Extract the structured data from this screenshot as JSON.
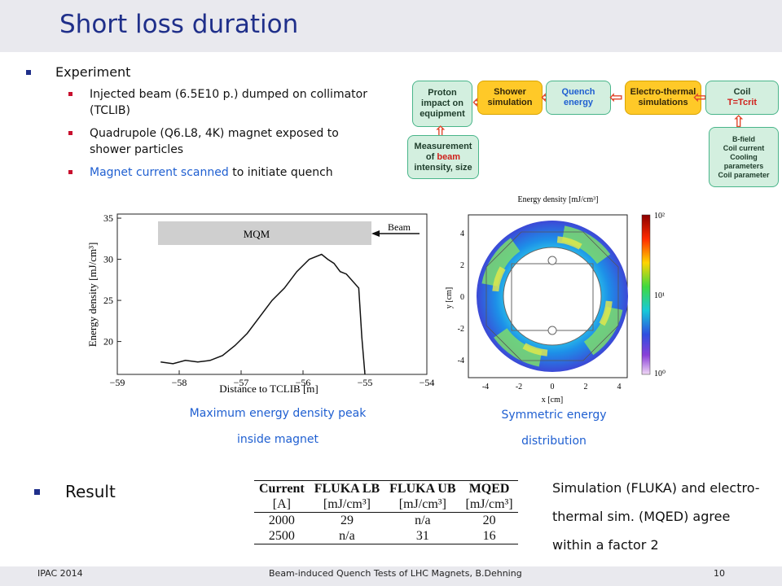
{
  "title": "Short loss duration",
  "experiment": {
    "heading": "Experiment",
    "items": [
      "Injected beam (6.5E10 p.) dumped on collimator (TCLIB)",
      "Quadrupole (Q6.L8, 4K) magnet exposed to shower particles"
    ],
    "item3_blue": "Magnet current scanned",
    "item3_rest": " to initiate quench"
  },
  "flow": {
    "proton": [
      "Proton",
      "impact on",
      "equipment"
    ],
    "shower": [
      "Shower",
      "simulation"
    ],
    "quench": [
      "Quench",
      "energy"
    ],
    "electro": [
      "Electro-thermal",
      "simulations"
    ],
    "coil": "Coil",
    "coil_sub": "T=Tcrit",
    "measure": [
      "Measurement",
      "of beam",
      "intensity, size"
    ],
    "params": [
      "B-field",
      "Coil current",
      "Cooling",
      "parameters",
      "Coil parameter"
    ]
  },
  "chart_data": [
    {
      "type": "line",
      "xlabel": "Distance to TCLIB [m]",
      "ylabel": "Energy density [mJ/cm³]",
      "xlim": [
        -59,
        -54
      ],
      "ylim": [
        16,
        35.5
      ],
      "xticks": [
        -59,
        -58,
        -57,
        -56,
        -55,
        -54
      ],
      "yticks": [
        20,
        25,
        30,
        35
      ],
      "annotations": [
        "MQM",
        "Beam"
      ],
      "series": [
        {
          "x": [
            -58.3,
            -58.1,
            -57.9,
            -57.7,
            -57.5,
            -57.3,
            -57.1,
            -56.9,
            -56.7,
            -56.5,
            -56.3,
            -56.1,
            -55.9,
            -55.7,
            -55.6,
            -55.5,
            -55.4,
            -55.3,
            -55.1,
            -55.05,
            -55.0
          ],
          "y": [
            17.5,
            17.3,
            17.7,
            17.5,
            17.7,
            18.3,
            19.5,
            21.0,
            23.0,
            25.0,
            26.5,
            28.5,
            30.0,
            30.6,
            30.0,
            29.5,
            28.5,
            28.2,
            26.5,
            20.5,
            16.0
          ]
        }
      ]
    },
    {
      "type": "heatmap",
      "title": "Energy density [mJ/cm³]",
      "xlabel": "x [cm]",
      "ylabel": "y [cm]",
      "xticks": [
        -4,
        -2,
        0,
        2,
        4
      ],
      "yticks": [
        4,
        2,
        0,
        -2,
        -4
      ],
      "colorbar_ticks": [
        "10²",
        "10¹",
        "10⁰"
      ]
    }
  ],
  "captions": {
    "left": [
      "Maximum energy density peak",
      "inside magnet"
    ],
    "right": [
      "Symmetric energy",
      "distribution"
    ]
  },
  "result": {
    "label": "Result",
    "table_headers": [
      "Current",
      "FLUKA LB",
      "FLUKA UB",
      "MQED"
    ],
    "table_units": [
      "[A]",
      "[mJ/cm³]",
      "[mJ/cm³]",
      "[mJ/cm³]"
    ],
    "rows": [
      [
        "2000",
        "29",
        "n/a",
        "20"
      ],
      [
        "2500",
        "n/a",
        "31",
        "16"
      ]
    ],
    "summary": "Simulation (FLUKA) and electro-thermal sim. (MQED) agree within a factor 2"
  },
  "footer": {
    "left": "IPAC 2014",
    "center": "Beam-induced Quench Tests of LHC Magnets, B.Dehning",
    "page": "10"
  }
}
